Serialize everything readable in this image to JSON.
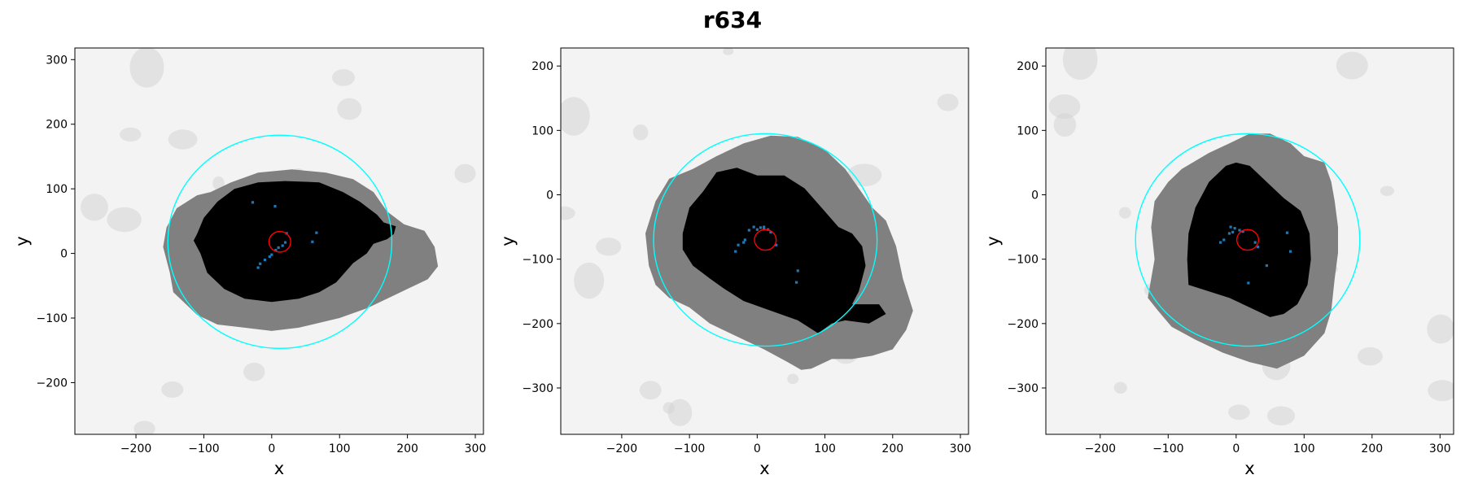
{
  "figure": {
    "title": "r634"
  },
  "colors": {
    "background_noise": "#f3f3f3",
    "halo": "#808080",
    "core": "#000000",
    "outer_circle": "#00ffff",
    "inner_circle": "#ff0000",
    "points": "#1f77b4"
  },
  "chart_data": [
    {
      "type": "scatter",
      "title": "",
      "xlabel": "x",
      "ylabel": "y",
      "xlim": [
        -290,
        312
      ],
      "ylim": [
        -280,
        318
      ],
      "xticks": [
        -200,
        -100,
        0,
        100,
        200,
        300
      ],
      "yticks": [
        -200,
        -100,
        0,
        100,
        200,
        300
      ],
      "xtick_labels": [
        "−200",
        "−100",
        "0",
        "100",
        "200",
        "300"
      ],
      "ytick_labels": [
        "−200",
        "−100",
        "0",
        "100",
        "200",
        "300"
      ],
      "grid": false,
      "outer_circle": {
        "cx": 12,
        "cy": 18,
        "r": 165
      },
      "inner_circle": {
        "cx": 12,
        "cy": 18,
        "r": 16
      },
      "halo_outline": [
        [
          -150,
          -30
        ],
        [
          -160,
          10
        ],
        [
          -155,
          40
        ],
        [
          -140,
          70
        ],
        [
          -110,
          90
        ],
        [
          -90,
          95
        ],
        [
          -60,
          110
        ],
        [
          -20,
          125
        ],
        [
          30,
          130
        ],
        [
          80,
          125
        ],
        [
          120,
          115
        ],
        [
          150,
          95
        ],
        [
          170,
          65
        ],
        [
          195,
          45
        ],
        [
          225,
          35
        ],
        [
          240,
          10
        ],
        [
          245,
          -20
        ],
        [
          230,
          -40
        ],
        [
          200,
          -55
        ],
        [
          170,
          -70
        ],
        [
          140,
          -85
        ],
        [
          100,
          -100
        ],
        [
          40,
          -115
        ],
        [
          0,
          -120
        ],
        [
          -40,
          -115
        ],
        [
          -80,
          -110
        ],
        [
          -110,
          -95
        ],
        [
          -125,
          -80
        ],
        [
          -145,
          -60
        ]
      ],
      "core_outline": [
        [
          -110,
          30
        ],
        [
          -100,
          55
        ],
        [
          -80,
          80
        ],
        [
          -55,
          100
        ],
        [
          -20,
          110
        ],
        [
          20,
          112
        ],
        [
          70,
          110
        ],
        [
          105,
          95
        ],
        [
          130,
          80
        ],
        [
          155,
          60
        ],
        [
          165,
          48
        ],
        [
          183,
          42
        ],
        [
          180,
          30
        ],
        [
          170,
          22
        ],
        [
          150,
          15
        ],
        [
          140,
          0
        ],
        [
          120,
          -15
        ],
        [
          95,
          -45
        ],
        [
          70,
          -60
        ],
        [
          40,
          -70
        ],
        [
          0,
          -75
        ],
        [
          -40,
          -70
        ],
        [
          -70,
          -55
        ],
        [
          -95,
          -30
        ],
        [
          -105,
          0
        ],
        [
          -115,
          20
        ]
      ],
      "points": [
        [
          -28,
          79
        ],
        [
          5,
          73
        ],
        [
          -20,
          -22
        ],
        [
          -17,
          -16
        ],
        [
          -10,
          -10
        ],
        [
          -3,
          -5
        ],
        [
          0,
          -2
        ],
        [
          6,
          5
        ],
        [
          10,
          9
        ],
        [
          16,
          12
        ],
        [
          20,
          17
        ],
        [
          60,
          18
        ],
        [
          66,
          32
        ],
        [
          22,
          31
        ]
      ]
    },
    {
      "type": "scatter",
      "title": "",
      "xlabel": "x",
      "ylabel": "y",
      "xlim": [
        -290,
        312
      ],
      "ylim": [
        -372,
        228
      ],
      "xticks": [
        -200,
        -100,
        0,
        100,
        200,
        300
      ],
      "yticks": [
        -300,
        -200,
        -100,
        0,
        100,
        200
      ],
      "xtick_labels": [
        "−200",
        "−100",
        "0",
        "100",
        "200",
        "300"
      ],
      "ytick_labels": [
        "−300",
        "−200",
        "−100",
        "0",
        "100",
        "200"
      ],
      "grid": false,
      "outer_circle": {
        "cx": 12,
        "cy": -70,
        "r": 165
      },
      "inner_circle": {
        "cx": 12,
        "cy": -70,
        "r": 16
      },
      "halo_outline": [
        [
          -160,
          -110
        ],
        [
          -165,
          -60
        ],
        [
          -150,
          -10
        ],
        [
          -130,
          25
        ],
        [
          -95,
          40
        ],
        [
          -60,
          60
        ],
        [
          -20,
          80
        ],
        [
          20,
          92
        ],
        [
          60,
          90
        ],
        [
          100,
          70
        ],
        [
          130,
          40
        ],
        [
          150,
          10
        ],
        [
          170,
          -20
        ],
        [
          190,
          -40
        ],
        [
          205,
          -80
        ],
        [
          215,
          -130
        ],
        [
          230,
          -180
        ],
        [
          220,
          -210
        ],
        [
          200,
          -240
        ],
        [
          170,
          -250
        ],
        [
          140,
          -255
        ],
        [
          110,
          -255
        ],
        [
          80,
          -270
        ],
        [
          65,
          -272
        ],
        [
          45,
          -260
        ],
        [
          10,
          -240
        ],
        [
          -40,
          -215
        ],
        [
          -70,
          -200
        ],
        [
          -100,
          -175
        ],
        [
          -130,
          -160
        ],
        [
          -150,
          -140
        ]
      ],
      "core_outline": [
        [
          -110,
          -60
        ],
        [
          -100,
          -20
        ],
        [
          -80,
          5
        ],
        [
          -60,
          35
        ],
        [
          -30,
          42
        ],
        [
          0,
          30
        ],
        [
          40,
          30
        ],
        [
          70,
          10
        ],
        [
          95,
          -20
        ],
        [
          120,
          -50
        ],
        [
          140,
          -60
        ],
        [
          155,
          -80
        ],
        [
          160,
          -110
        ],
        [
          150,
          -150
        ],
        [
          140,
          -170
        ],
        [
          180,
          -170
        ],
        [
          190,
          -185
        ],
        [
          165,
          -200
        ],
        [
          130,
          -195
        ],
        [
          110,
          -200
        ],
        [
          90,
          -215
        ],
        [
          60,
          -195
        ],
        [
          20,
          -180
        ],
        [
          -20,
          -165
        ],
        [
          -50,
          -145
        ],
        [
          -70,
          -130
        ],
        [
          -95,
          -110
        ],
        [
          -110,
          -85
        ]
      ],
      "points": [
        [
          -5,
          -50
        ],
        [
          -12,
          -55
        ],
        [
          -20,
          -74
        ],
        [
          -28,
          -78
        ],
        [
          -18,
          -70
        ],
        [
          0,
          -54
        ],
        [
          5,
          -51
        ],
        [
          10,
          -50
        ],
        [
          16,
          -54
        ],
        [
          20,
          -58
        ],
        [
          28,
          -78
        ],
        [
          60,
          -118
        ],
        [
          58,
          -136
        ],
        [
          -32,
          -88
        ],
        [
          10,
          -53
        ]
      ]
    },
    {
      "type": "scatter",
      "title": "",
      "xlabel": "x",
      "ylabel": "y",
      "xlim": [
        -280,
        320
      ],
      "ylim": [
        -372,
        228
      ],
      "xticks": [
        -200,
        -100,
        0,
        100,
        200,
        300
      ],
      "yticks": [
        -300,
        -200,
        -100,
        0,
        100,
        200
      ],
      "xtick_labels": [
        "−200",
        "−100",
        "0",
        "100",
        "200",
        "300"
      ],
      "ytick_labels": [
        "−300",
        "−200",
        "−100",
        "0",
        "100",
        "200"
      ],
      "grid": false,
      "outer_circle": {
        "cx": 17,
        "cy": -70,
        "r": 165
      },
      "inner_circle": {
        "cx": 17,
        "cy": -70,
        "r": 16
      },
      "halo_outline": [
        [
          -130,
          -160
        ],
        [
          -120,
          -100
        ],
        [
          -125,
          -50
        ],
        [
          -120,
          -10
        ],
        [
          -100,
          20
        ],
        [
          -80,
          40
        ],
        [
          -40,
          65
        ],
        [
          -10,
          80
        ],
        [
          20,
          95
        ],
        [
          50,
          95
        ],
        [
          80,
          80
        ],
        [
          100,
          60
        ],
        [
          130,
          50
        ],
        [
          140,
          20
        ],
        [
          145,
          -10
        ],
        [
          150,
          -50
        ],
        [
          150,
          -90
        ],
        [
          145,
          -130
        ],
        [
          140,
          -180
        ],
        [
          130,
          -215
        ],
        [
          100,
          -250
        ],
        [
          60,
          -270
        ],
        [
          20,
          -260
        ],
        [
          -20,
          -245
        ],
        [
          -60,
          -225
        ],
        [
          -95,
          -205
        ],
        [
          -115,
          -180
        ]
      ],
      "core_outline": [
        [
          -70,
          -140
        ],
        [
          -72,
          -100
        ],
        [
          -70,
          -60
        ],
        [
          -60,
          -20
        ],
        [
          -40,
          20
        ],
        [
          -15,
          45
        ],
        [
          0,
          50
        ],
        [
          20,
          45
        ],
        [
          45,
          20
        ],
        [
          70,
          -5
        ],
        [
          95,
          -25
        ],
        [
          108,
          -60
        ],
        [
          110,
          -100
        ],
        [
          105,
          -140
        ],
        [
          90,
          -170
        ],
        [
          70,
          -185
        ],
        [
          50,
          -190
        ],
        [
          20,
          -175
        ],
        [
          -10,
          -160
        ],
        [
          -40,
          -150
        ]
      ],
      "points": [
        [
          -8,
          -50
        ],
        [
          -2,
          -52
        ],
        [
          -5,
          -58
        ],
        [
          -10,
          -60
        ],
        [
          -18,
          -70
        ],
        [
          -23,
          -74
        ],
        [
          5,
          -55
        ],
        [
          10,
          -57
        ],
        [
          28,
          -74
        ],
        [
          32,
          -81
        ],
        [
          75,
          -59
        ],
        [
          80,
          -88
        ],
        [
          45,
          -110
        ],
        [
          18,
          -137
        ]
      ]
    }
  ]
}
